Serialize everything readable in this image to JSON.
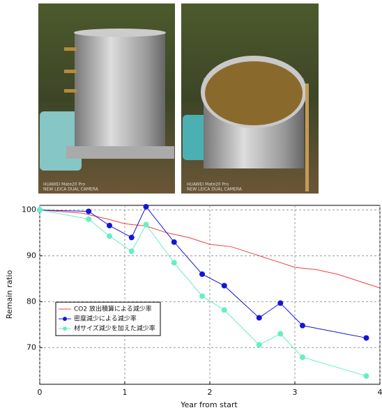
{
  "photos": [
    {
      "watermark": [
        "HUAWEI Mate20 Pro",
        "NEW LEICA DUAL CAMERA"
      ]
    },
    {
      "watermark": [
        "HUAWEI Mate20 Pro",
        "NEW LEICA DUAL CAMERA"
      ]
    }
  ],
  "chart_data": {
    "type": "line",
    "xlabel": "Year from start",
    "ylabel": "Remain ratio",
    "xlim": [
      0,
      4
    ],
    "xticks": [
      0,
      1,
      2,
      3,
      4
    ],
    "ylim": [
      62,
      101
    ],
    "yticks": [
      70,
      80,
      90,
      100
    ],
    "grid": true,
    "legend": "center-left",
    "series": [
      {
        "name": "CO2 放出積算による減少率",
        "color": "#f04040",
        "x": [
          0,
          0.5,
          0.8,
          1,
          1.25,
          1.5,
          1.75,
          2,
          2.25,
          2.5,
          2.75,
          3,
          3.25,
          3.5,
          3.75,
          4
        ],
        "values": [
          100,
          99.3,
          98,
          97,
          96.5,
          95,
          94,
          92.5,
          92,
          90.5,
          89,
          87.5,
          87,
          86,
          84.5,
          83
        ]
      },
      {
        "name": "密度減少による減少率",
        "color": "#1515d8",
        "marker": "o",
        "x": [
          0,
          0.575,
          0.82,
          1.08,
          1.25,
          1.58,
          1.91,
          2.17,
          2.58,
          2.83,
          3.09,
          3.84
        ],
        "values": [
          100,
          99.7,
          96.6,
          94,
          100.7,
          93,
          86,
          83.5,
          76.5,
          79.7,
          74.8,
          72.1
        ]
      },
      {
        "name": "材サイズ減少を加えた減少率",
        "color": "#66eec4",
        "marker": "o",
        "x": [
          0,
          0.575,
          0.82,
          1.08,
          1.25,
          1.58,
          1.91,
          2.17,
          2.58,
          2.83,
          3.09,
          3.84
        ],
        "values": [
          100,
          98,
          94.3,
          91,
          96.8,
          88.5,
          81.2,
          78.2,
          70.6,
          73,
          67.9,
          63.8
        ]
      }
    ]
  }
}
